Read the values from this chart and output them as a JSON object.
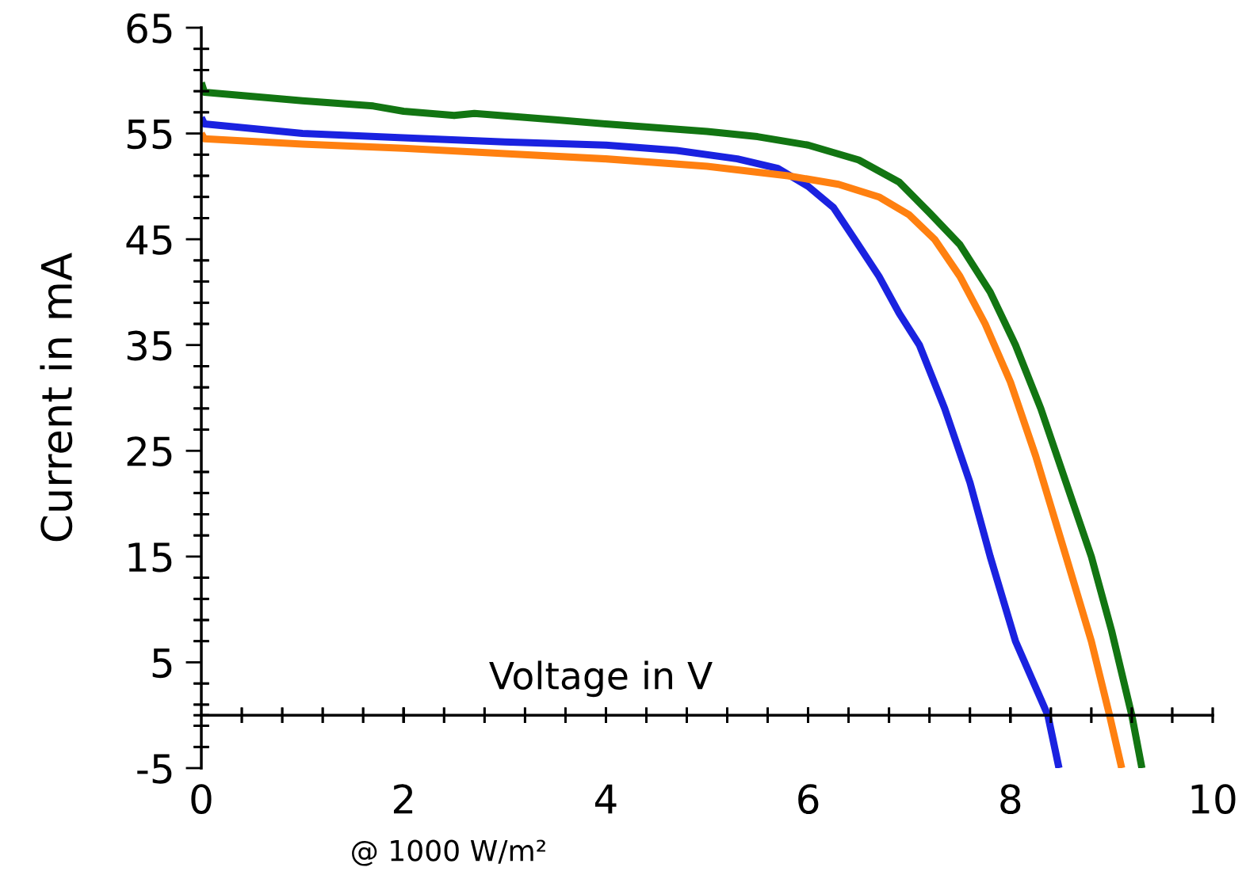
{
  "chart_data": {
    "type": "line",
    "xlabel": "Voltage in V",
    "ylabel": "Current in mA",
    "annotations": [
      "@ 1000 W/m²"
    ],
    "xlim": [
      0,
      10
    ],
    "ylim": [
      -5,
      65
    ],
    "xticks": [
      0,
      2,
      4,
      6,
      8,
      10
    ],
    "yticks": [
      -5,
      5,
      15,
      25,
      35,
      45,
      55,
      65
    ],
    "grid": false,
    "marker": "none",
    "line_style": "solid",
    "series": [
      {
        "color": "#1a22e0",
        "x": [
          0,
          0.03,
          1,
          2,
          3,
          4,
          4.7,
          5.3,
          5.7,
          6.0,
          6.25,
          6.46,
          6.7,
          6.9,
          7.1,
          7.35,
          7.6,
          7.8,
          8.05,
          8.37,
          8.48
        ],
        "values": [
          56.5,
          55.9,
          55.0,
          54.6,
          54.2,
          53.9,
          53.4,
          52.6,
          51.7,
          50.0,
          48.0,
          45,
          41.5,
          38,
          35,
          29,
          22,
          15,
          7,
          0,
          -5
        ]
      },
      {
        "color": "#ff8010",
        "x": [
          0,
          0.03,
          1,
          2,
          3,
          4,
          5,
          5.8,
          6.3,
          6.7,
          7.0,
          7.25,
          7.5,
          7.75,
          8.0,
          8.25,
          8.55,
          8.8,
          8.98,
          9.1
        ],
        "values": [
          55.0,
          54.5,
          54.0,
          53.6,
          53.1,
          52.6,
          51.9,
          51.0,
          50.2,
          49,
          47.3,
          45,
          41.5,
          37,
          31.5,
          24.5,
          15,
          7,
          0,
          -5
        ]
      },
      {
        "color": "#127512",
        "x": [
          0,
          0.03,
          1,
          1.7,
          2,
          2.5,
          2.7,
          3.5,
          4,
          5,
          5.5,
          6,
          6.5,
          6.9,
          7.2,
          7.5,
          7.8,
          8.05,
          8.3,
          8.55,
          8.8,
          9.0,
          9.2,
          9.3
        ],
        "values": [
          59.8,
          58.9,
          58.1,
          57.6,
          57.1,
          56.7,
          56.9,
          56.3,
          55.9,
          55.2,
          54.7,
          53.9,
          52.5,
          50.4,
          47.5,
          44.5,
          40,
          35,
          29,
          22,
          15,
          8,
          0,
          -5
        ]
      }
    ]
  }
}
